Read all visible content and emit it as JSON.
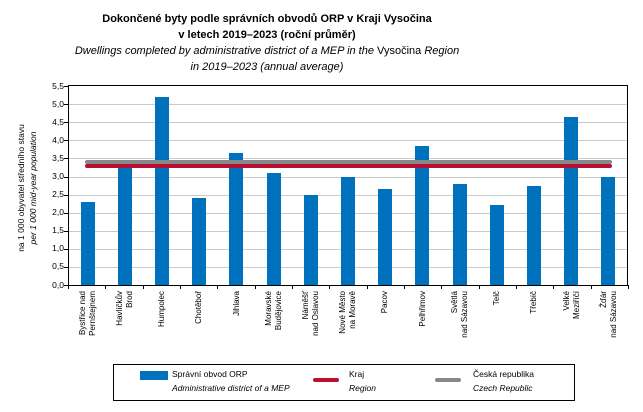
{
  "chart_data": {
    "type": "bar",
    "title": {
      "cs_line1": "Dokončené byty podle správních obvodů ORP v Kraji Vysočina",
      "cs_line2": "v letech 2019–2023 (roční průměr)",
      "en_line1_pre": "Dwellings completed by administrative district of a MEP in the ",
      "en_line1_upright": "Vysočina",
      "en_line1_post": " Region",
      "en_line2": "in 2019–2023 (annual average)"
    },
    "ylabel_cs": "na 1 000 obyvatel středního stavu",
    "ylabel_en": "per 1 000 mid-year population",
    "ylim": [
      0,
      5.5
    ],
    "ytick_step": 0.5,
    "yticks": [
      "0,0",
      "0,5",
      "1,0",
      "1,5",
      "2,0",
      "2,5",
      "3,0",
      "3,5",
      "4,0",
      "4,5",
      "5,0",
      "5,5"
    ],
    "grid": true,
    "legend_position": "bottom",
    "categories": [
      "Bystřice nad\nPernštejnem",
      "Havlíčkův\nBrod",
      "Humpolec",
      "Chotěboř",
      "Jihlava",
      "Moravské\nBudějovice",
      "Náměšť\nnad Oslavou",
      "Nové Město\nna Moravě",
      "Pacov",
      "Pelhřimov",
      "Světlá\nnad Sázavou",
      "Telč",
      "Třebíč",
      "Velké\nMeziříčí",
      "Žďár\nnad Sázavou"
    ],
    "values": [
      2.3,
      3.4,
      5.2,
      2.4,
      3.65,
      3.1,
      2.5,
      3.0,
      2.65,
      3.85,
      2.8,
      2.2,
      2.75,
      4.65,
      3.0
    ],
    "series": {
      "name_cs": "Správní obvod ORP",
      "name_en": "Administrative district of a MEP",
      "color": "#0071bc"
    },
    "reference_lines": [
      {
        "name_cs": "Kraj",
        "name_en": "Region",
        "value": 3.3,
        "color": "#b91030"
      },
      {
        "name_cs": "Česká republika",
        "name_en": "Czech Republic",
        "value": 3.4,
        "color": "#86888b"
      }
    ],
    "colors": {
      "gridline": "#c9c9c9",
      "axis": "#000000"
    }
  }
}
